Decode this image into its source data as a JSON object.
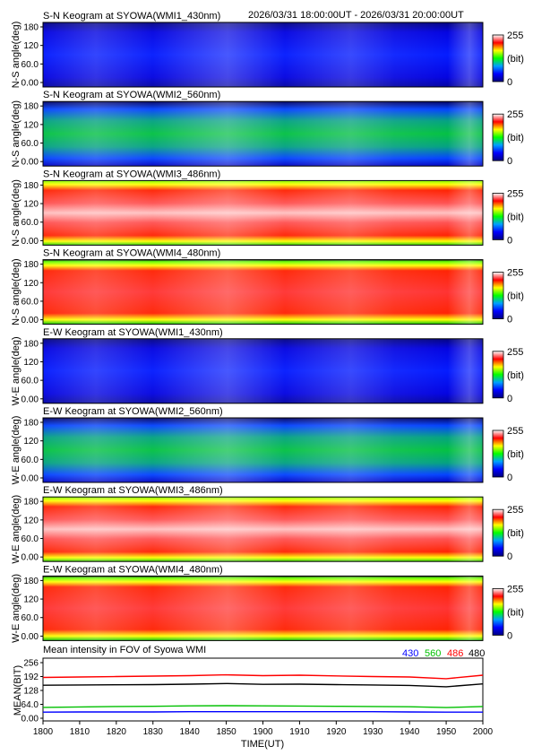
{
  "header_range": "2026/03/31 18:00:00UT - 2026/03/31 20:00:00UT",
  "keograms": [
    {
      "title": "S-N Keogram at SYOWA(WMI1_430nm)",
      "ylabel": "N-S angle(deg)",
      "variant": "430"
    },
    {
      "title": "S-N Keogram at SYOWA(WMI2_560nm)",
      "ylabel": "N-S angle(deg)",
      "variant": "560"
    },
    {
      "title": "S-N Keogram at SYOWA(WMI3_486nm)",
      "ylabel": "N-S angle(deg)",
      "variant": "486"
    },
    {
      "title": "S-N Keogram at SYOWA(WMI4_480nm)",
      "ylabel": "N-S angle(deg)",
      "variant": "480"
    },
    {
      "title": "E-W Keogram at SYOWA(WMI1_430nm)",
      "ylabel": "W-E angle(deg)",
      "variant": "430"
    },
    {
      "title": "E-W Keogram at SYOWA(WMI2_560nm)",
      "ylabel": "W-E angle(deg)",
      "variant": "560"
    },
    {
      "title": "E-W Keogram at SYOWA(WMI3_486nm)",
      "ylabel": "W-E angle(deg)",
      "variant": "486"
    },
    {
      "title": "E-W Keogram at SYOWA(WMI4_480nm)",
      "ylabel": "W-E angle(deg)",
      "variant": "480"
    }
  ],
  "keogram_yticks": [
    "0.00",
    "60.0",
    "120",
    "180"
  ],
  "colorbar": {
    "max_label": "255",
    "unit_label": "(bit)",
    "min_label": "0"
  },
  "palette": [
    "#000080",
    "#0000ff",
    "#00a0ff",
    "#00ff00",
    "#ffff00",
    "#ff0000",
    "#ffffff"
  ],
  "chart_data": {
    "type": "line",
    "title": "Mean intensity in FOV of Syowa WMI",
    "xlabel": "TIME(UT)",
    "ylabel": "MEAN(BIT)",
    "ylim": [
      0,
      256
    ],
    "yticks": [
      "0.00",
      "64.0",
      "128",
      "192",
      "256"
    ],
    "xlim": [
      1800,
      2000
    ],
    "xticks": [
      "1800",
      "1810",
      "1820",
      "1830",
      "1840",
      "1850",
      "1900",
      "1910",
      "1920",
      "1930",
      "1940",
      "1950",
      "2000"
    ],
    "series": [
      {
        "name": "430",
        "color": "#0000ff",
        "values": [
          28,
          29,
          29,
          29,
          30,
          30,
          30,
          30,
          30,
          30,
          29,
          28,
          28
        ]
      },
      {
        "name": "560",
        "color": "#00c000",
        "values": [
          50,
          52,
          54,
          55,
          57,
          58,
          57,
          56,
          55,
          54,
          53,
          49,
          54
        ]
      },
      {
        "name": "486",
        "color": "#ff0000",
        "values": [
          188,
          190,
          192,
          194,
          196,
          200,
          196,
          198,
          195,
          192,
          190,
          182,
          198
        ]
      },
      {
        "name": "480",
        "color": "#000000",
        "values": [
          152,
          153,
          154,
          155,
          157,
          160,
          156,
          157,
          155,
          153,
          151,
          145,
          158
        ]
      }
    ]
  }
}
